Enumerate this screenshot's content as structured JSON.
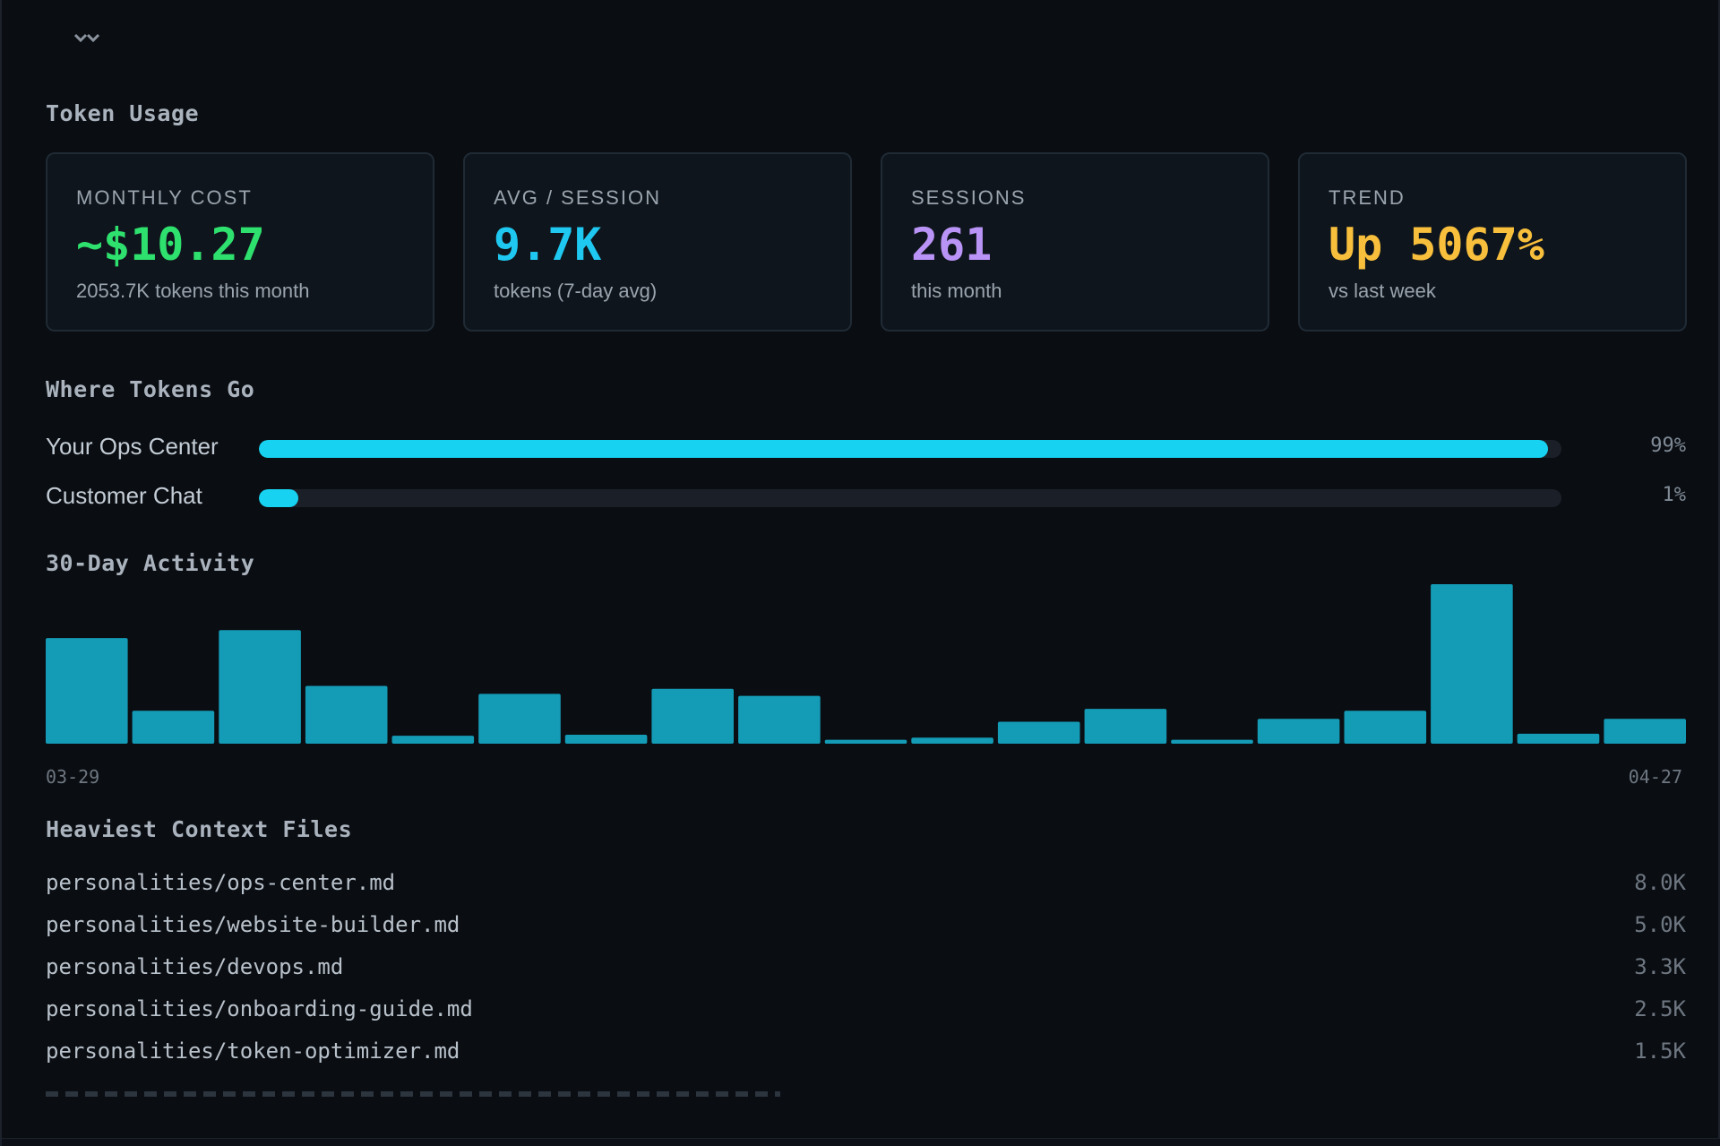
{
  "sections": {
    "token_usage": "Token Usage",
    "where_tokens_go": "Where Tokens Go",
    "activity": "30-Day Activity",
    "heaviest_files": "Heaviest Context Files"
  },
  "stats": [
    {
      "label": "MONTHLY COST",
      "value": "~$10.27",
      "sub": "2053.7K tokens this month",
      "color": "#2ee06e"
    },
    {
      "label": "AVG / SESSION",
      "value": "9.7K",
      "sub": "tokens (7-day avg)",
      "color": "#1fc8f0"
    },
    {
      "label": "SESSIONS",
      "value": "261",
      "sub": "this month",
      "color": "#b994f6"
    },
    {
      "label": "TREND",
      "value": "Up 5067%",
      "sub": "vs last week",
      "color": "#f7bf3c"
    }
  ],
  "distribution": [
    {
      "label": "Your Ops Center",
      "pct_text": "99%",
      "pct": 99
    },
    {
      "label": "Customer Chat",
      "pct_text": "1%",
      "pct": 1
    }
  ],
  "chart_data": {
    "type": "bar",
    "title": "30-Day Activity",
    "x_start_label": "03-29",
    "x_end_label": "04-27",
    "values": [
      106,
      33,
      114,
      58,
      8,
      50,
      9,
      55,
      48,
      4,
      6,
      22,
      35,
      4,
      25,
      33,
      160,
      10,
      25
    ],
    "ylim": [
      0,
      160
    ],
    "color": "#149bb6"
  },
  "files": [
    {
      "name": "personalities/ops-center.md",
      "size": "8.0K"
    },
    {
      "name": "personalities/website-builder.md",
      "size": "5.0K"
    },
    {
      "name": "personalities/devops.md",
      "size": "3.3K"
    },
    {
      "name": "personalities/onboarding-guide.md",
      "size": "2.5K"
    },
    {
      "name": "personalities/token-optimizer.md",
      "size": "1.5K"
    }
  ]
}
